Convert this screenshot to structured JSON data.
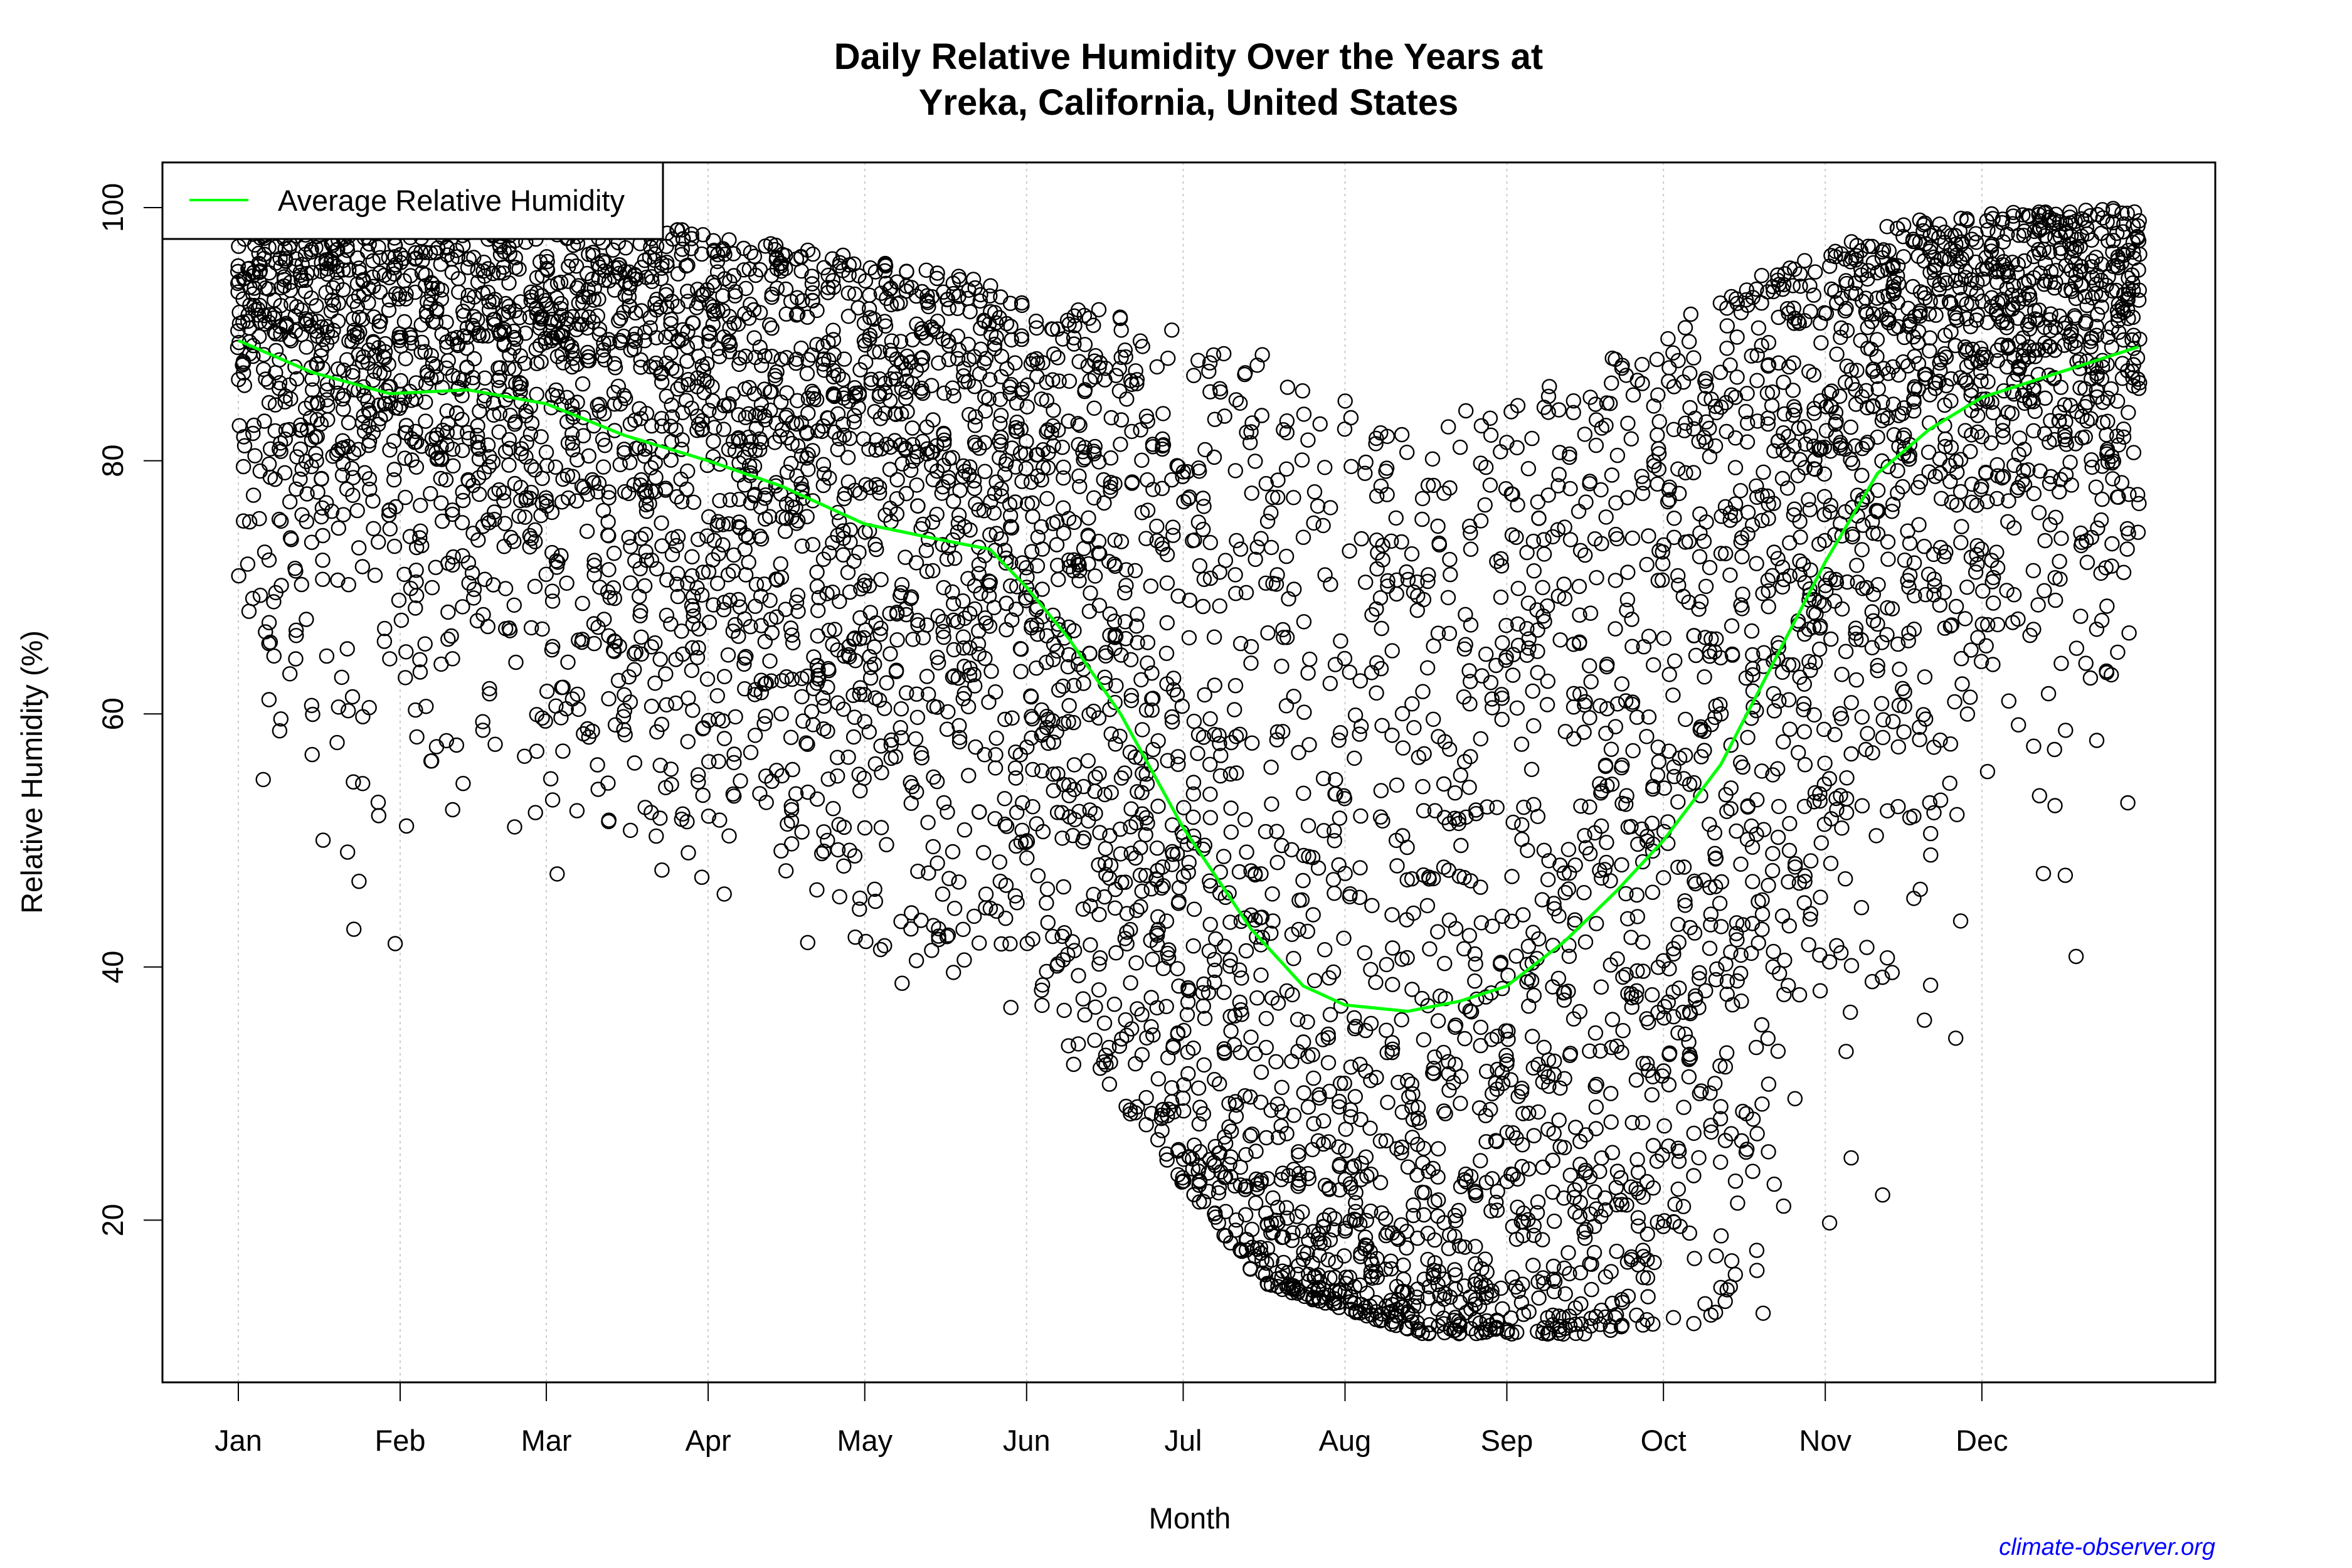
{
  "chart_data": {
    "type": "scatter",
    "title": [
      "Daily Relative Humidity Over the Years at",
      "Yreka, California, United States"
    ],
    "xlabel": "Month",
    "ylabel": "Relative Humidity  (%)",
    "ylim": [
      7,
      104
    ],
    "xlim_day_of_year": [
      -5,
      395
    ],
    "x_ticks": [
      {
        "label": "Jan",
        "day": 1
      },
      {
        "label": "Feb",
        "day": 32
      },
      {
        "label": "Mar",
        "day": 60
      },
      {
        "label": "Apr",
        "day": 91
      },
      {
        "label": "May",
        "day": 121
      },
      {
        "label": "Jun",
        "day": 152
      },
      {
        "label": "Jul",
        "day": 182
      },
      {
        "label": "Aug",
        "day": 213
      },
      {
        "label": "Sep",
        "day": 244
      },
      {
        "label": "Oct",
        "day": 274
      },
      {
        "label": "Nov",
        "day": 305
      },
      {
        "label": "Dec",
        "day": 335
      }
    ],
    "y_ticks": [
      20,
      40,
      60,
      80,
      100
    ],
    "grid": "vertical dotted at month ticks",
    "legend": {
      "position": "top-left",
      "entries": [
        {
          "label": "Average Relative Humidity",
          "color": "#00ff00"
        }
      ]
    },
    "series": [
      {
        "name": "Average Relative Humidity",
        "type": "line",
        "color": "#00ff00",
        "x_day": [
          1,
          15,
          30,
          45,
          60,
          75,
          91,
          105,
          121,
          135,
          145,
          152,
          160,
          170,
          182,
          195,
          205,
          213,
          225,
          235,
          244,
          255,
          265,
          274,
          285,
          295,
          305,
          315,
          325,
          335,
          350,
          365
        ],
        "y": [
          89.5,
          87,
          85.3,
          85.6,
          84.5,
          82,
          80,
          78,
          75,
          73.8,
          73,
          70,
          66,
          60,
          51,
          43,
          38.5,
          37,
          36.5,
          37.3,
          38.5,
          42,
          46,
          50,
          56,
          64,
          72,
          79,
          82.5,
          85,
          87,
          89
        ]
      },
      {
        "name": "",
        "type": "scatter",
        "marker": "open-circle",
        "color": "#000000",
        "monthly_range": {
          "months": [
            "Jan",
            "Feb",
            "Mar",
            "Apr",
            "May",
            "Jun",
            "Jul",
            "Aug",
            "Sep",
            "Oct",
            "Nov",
            "Dec"
          ],
          "min": [
            32,
            36,
            45,
            41,
            35,
            31,
            15,
            11,
            11,
            12,
            16,
            30
          ],
          "max": [
            100,
            100,
            99,
            97,
            95,
            92,
            89,
            83,
            87,
            94,
            99,
            100
          ]
        }
      }
    ]
  },
  "credit": "climate-observer.org"
}
